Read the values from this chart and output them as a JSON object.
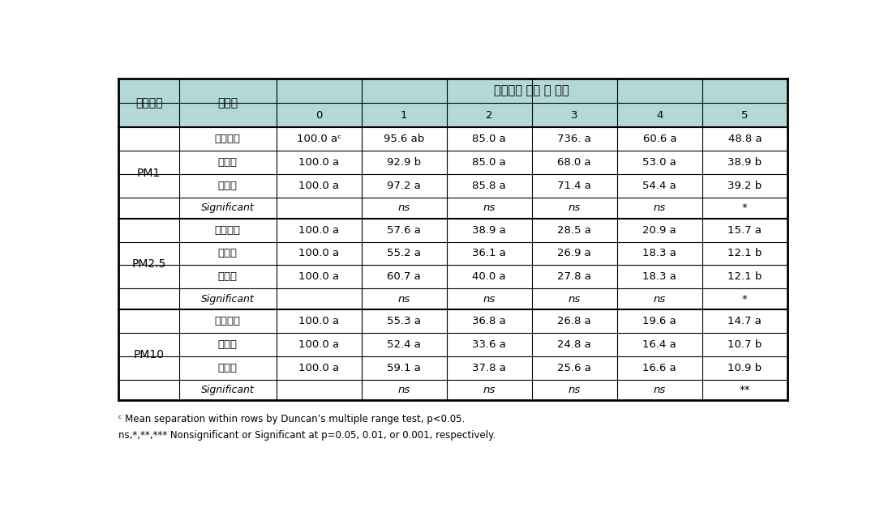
{
  "header_bg": "#b2d8d8",
  "white_bg": "#ffffff",
  "title_text": "미세먼지 주입 후 시간",
  "col1_header": "미세먼지",
  "col2_header": "식물명",
  "time_headers": [
    "0",
    "1",
    "2",
    "3",
    "4",
    "5"
  ],
  "sections": [
    {
      "label": "PM1",
      "rows": [
        {
          "plant": "눈개승마",
          "values": [
            "100.0 aᶜ",
            "95.6 ab",
            "85.0 a",
            "736. a",
            "60.6 a",
            "48.8 a"
          ]
        },
        {
          "plant": "큰뱀무",
          "values": [
            "100.0 a",
            "92.9 b",
            "85.0 a",
            "68.0 a",
            "53.0 a",
            "38.9 b"
          ]
        },
        {
          "plant": "오이풀",
          "values": [
            "100.0 a",
            "97.2 a",
            "85.8 a",
            "71.4 a",
            "54.4 a",
            "39.2 b"
          ]
        }
      ],
      "significant": [
        "",
        "ns",
        "ns",
        "ns",
        "ns",
        "*"
      ]
    },
    {
      "label": "PM2.5",
      "rows": [
        {
          "plant": "눈개승마",
          "values": [
            "100.0 a",
            "57.6 a",
            "38.9 a",
            "28.5 a",
            "20.9 a",
            "15.7 a"
          ]
        },
        {
          "plant": "큰뱀무",
          "values": [
            "100.0 a",
            "55.2 a",
            "36.1 a",
            "26.9 a",
            "18.3 a",
            "12.1 b"
          ]
        },
        {
          "plant": "오이풀",
          "values": [
            "100.0 a",
            "60.7 a",
            "40.0 a",
            "27.8 a",
            "18.3 a",
            "12.1 b"
          ]
        }
      ],
      "significant": [
        "",
        "ns",
        "ns",
        "ns",
        "ns",
        "*"
      ]
    },
    {
      "label": "PM10",
      "rows": [
        {
          "plant": "눈개승마",
          "values": [
            "100.0 a",
            "55.3 a",
            "36.8 a",
            "26.8 a",
            "19.6 a",
            "14.7 a"
          ]
        },
        {
          "plant": "큰뱀무",
          "values": [
            "100.0 a",
            "52.4 a",
            "33.6 a",
            "24.8 a",
            "16.4 a",
            "10.7 b"
          ]
        },
        {
          "plant": "오이풀",
          "values": [
            "100.0 a",
            "59.1 a",
            "37.8 a",
            "25.6 a",
            "16.6 a",
            "10.9 b"
          ]
        }
      ],
      "significant": [
        "",
        "ns",
        "ns",
        "ns",
        "ns",
        "**"
      ]
    }
  ],
  "footnote1": "ᶜ Mean separation within rows by Duncan’s multiple range test, p<0.05.",
  "footnote2": "ns,*,**,*** Nonsignificant or Significant at p=0.05, 0.01, or 0.001, respectively."
}
